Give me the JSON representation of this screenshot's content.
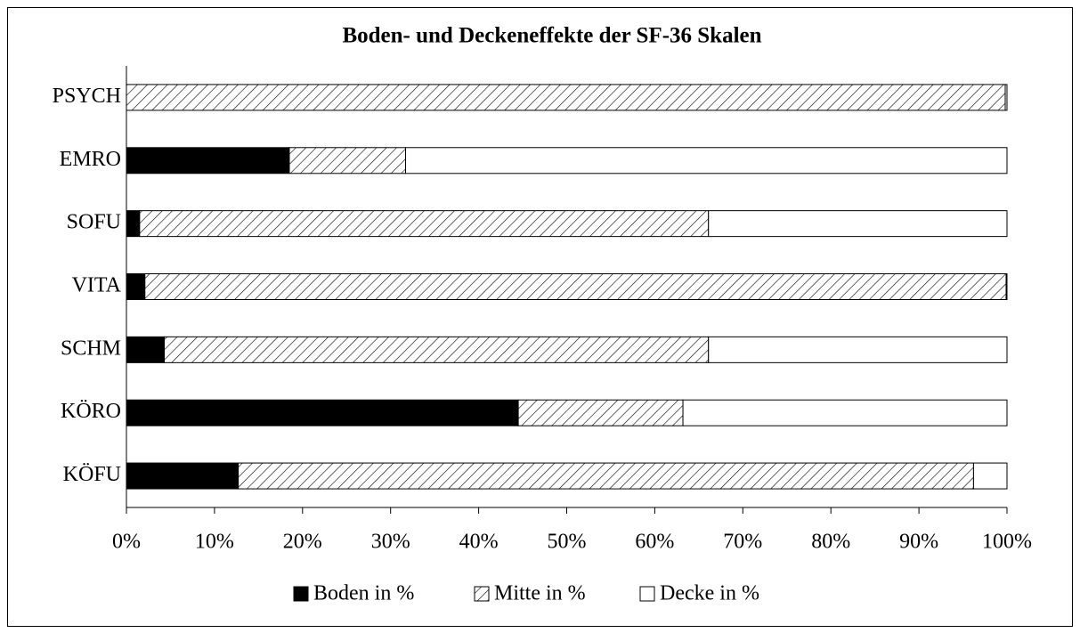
{
  "chart_data": {
    "type": "stacked_barh",
    "title": "Boden- und Deckeneffekte der SF-36 Skalen",
    "categories": [
      "PSYCH",
      "EMRO",
      "SOFU",
      "VITA",
      "SCHM",
      "KÖRO",
      "KÖFU"
    ],
    "series": [
      {
        "name": "Boden in %",
        "color": "#000000",
        "hatch": false,
        "values": [
          0,
          18.5,
          1.5,
          2.1,
          4.3,
          44.5,
          12.7
        ]
      },
      {
        "name": "Mitte in %",
        "color": "#ffffff",
        "hatch": true,
        "values": [
          99.8,
          13.2,
          64.6,
          97.8,
          61.8,
          18.7,
          83.5
        ]
      },
      {
        "name": "Decke in %",
        "color": "#ffffff",
        "hatch": false,
        "values": [
          0.2,
          68.3,
          33.9,
          0.1,
          33.9,
          36.8,
          3.8
        ]
      }
    ],
    "xlim": [
      0,
      100
    ],
    "xticks": [
      {
        "value": 0,
        "label": "0%"
      },
      {
        "value": 10,
        "label": "10%"
      },
      {
        "value": 20,
        "label": "20%"
      },
      {
        "value": 30,
        "label": "30%"
      },
      {
        "value": 40,
        "label": "40%"
      },
      {
        "value": 50,
        "label": "50%"
      },
      {
        "value": 60,
        "label": "60%"
      },
      {
        "value": 70,
        "label": "70%"
      },
      {
        "value": 80,
        "label": "80%"
      },
      {
        "value": 90,
        "label": "90%"
      },
      {
        "value": 100,
        "label": "100%"
      }
    ],
    "legend": "bottom"
  }
}
